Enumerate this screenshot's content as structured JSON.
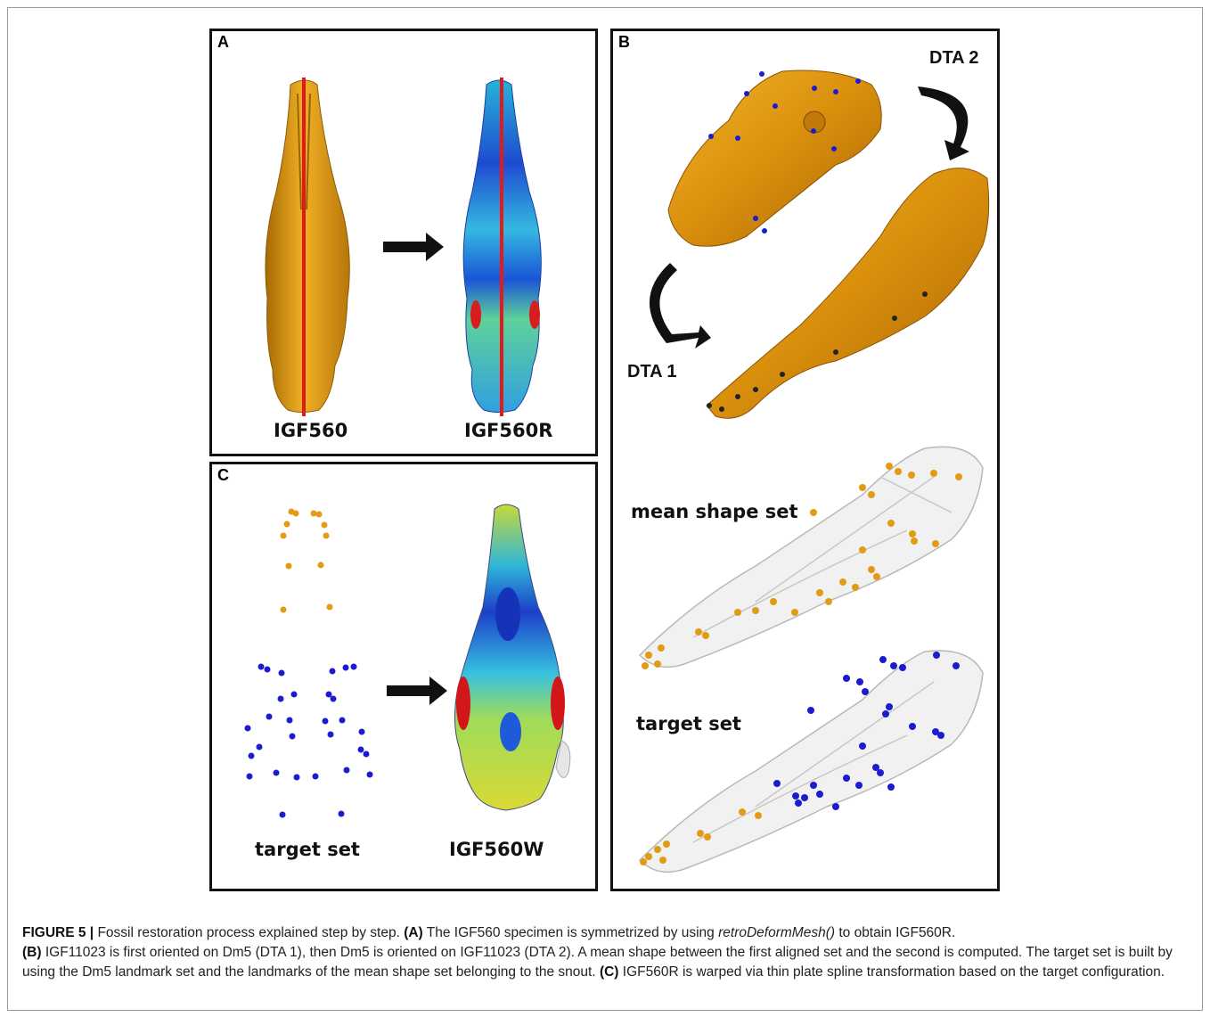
{
  "panels": {
    "a": {
      "letter": "A",
      "left_label": "IGF560",
      "right_label": "IGF560R"
    },
    "b": {
      "letter": "B",
      "dta2": "DTA 2",
      "dta1": "DTA 1",
      "mean": "mean shape set",
      "target": "target set"
    },
    "c": {
      "letter": "C",
      "left_label": "target set",
      "right_label": "IGF560W"
    }
  },
  "caption": {
    "heading": "FIGURE 5 |",
    "intro": " Fossil restoration process explained step by step. ",
    "a_tag": "(A)",
    "a_text_1": " The IGF560 specimen is symmetrized by using ",
    "a_func": "retroDeformMesh()",
    "a_text_2": " to obtain IGF560R.",
    "b_tag": "(B)",
    "b_text": " IGF11023 is first oriented on Dm5 (DTA 1), then Dm5 is oriented on IGF11023 (DTA 2). A mean shape between the first aligned set and the second is computed. The target set is built by using the Dm5 landmark set and the landmarks of the mean shape set belonging to the snout. ",
    "c_tag": "(C)",
    "c_text": " IGF560R is warped via thin plate spline transformation based on the target configuration."
  },
  "colors": {
    "skull_gold": "#e8a21a",
    "landmark_blue": "#1b1bd0",
    "landmark_orange": "#e39a14",
    "midline_red": "#e11b1b"
  }
}
